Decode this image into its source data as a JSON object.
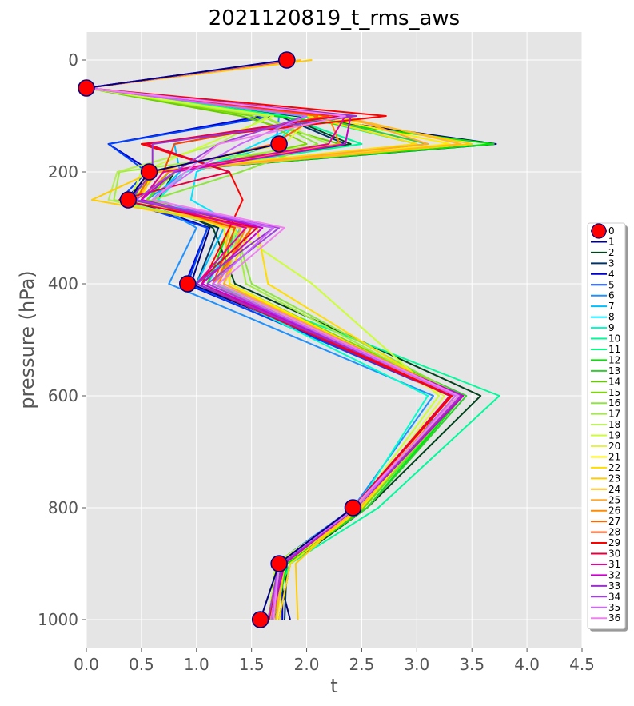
{
  "chart_data": {
    "type": "line",
    "title": "2021120819_t_rms_aws",
    "xlabel": "t",
    "ylabel": "pressure (hPa)",
    "xlim": [
      0,
      4.5
    ],
    "ylim": [
      1050,
      -50
    ],
    "xticks": [
      "0.0",
      "0.5",
      "1.0",
      "1.5",
      "2.0",
      "2.5",
      "3.0",
      "3.5",
      "4.0",
      "4.5"
    ],
    "yticks": [
      "0",
      "200",
      "400",
      "600",
      "800",
      "1000"
    ],
    "xtick_values": [
      0,
      0.5,
      1.0,
      1.5,
      2.0,
      2.5,
      3.0,
      3.5,
      4.0,
      4.5
    ],
    "ytick_values": [
      0,
      200,
      400,
      600,
      800,
      1000
    ],
    "grid": true,
    "background": "#e5e5e5",
    "legend_position": "right",
    "levels": [
      0,
      50,
      100,
      150,
      200,
      250,
      300,
      400,
      600,
      800,
      900,
      1000
    ],
    "marker_series": {
      "name": "0",
      "color": "#ff0000",
      "edge_color": "#000080",
      "x": [
        1.82,
        0.0,
        null,
        1.75,
        0.57,
        0.38,
        null,
        0.92,
        null,
        2.42,
        1.75,
        1.58
      ]
    },
    "series": [
      {
        "name": "1",
        "color": "#000080",
        "x": [
          1.85,
          0.0,
          1.9,
          3.72,
          0.62,
          0.38,
          1.12,
          0.95,
          3.4,
          2.5,
          1.72,
          1.85
        ]
      },
      {
        "name": "2",
        "color": "#00441b",
        "x": [
          1.9,
          0.0,
          1.8,
          2.4,
          0.8,
          0.65,
          1.15,
          1.35,
          3.58,
          2.55,
          1.85,
          1.75
        ]
      },
      {
        "name": "3",
        "color": "#003366",
        "x": [
          1.88,
          0.0,
          1.75,
          2.35,
          0.7,
          0.5,
          1.2,
          1.0,
          3.3,
          2.52,
          1.82,
          1.8
        ]
      },
      {
        "name": "4",
        "color": "#0000cd",
        "x": [
          1.85,
          0.0,
          1.6,
          0.2,
          0.6,
          0.35,
          1.1,
          0.9,
          3.35,
          2.45,
          1.78,
          1.78
        ]
      },
      {
        "name": "5",
        "color": "#0044ff",
        "x": [
          1.85,
          0.0,
          1.7,
          0.2,
          0.55,
          0.3,
          1.1,
          0.92,
          3.3,
          2.45,
          1.75,
          1.72
        ]
      },
      {
        "name": "6",
        "color": "#1e90ff",
        "x": [
          1.82,
          0.0,
          1.75,
          1.72,
          0.9,
          0.55,
          1.0,
          0.75,
          3.15,
          2.42,
          1.72,
          1.7
        ]
      },
      {
        "name": "7",
        "color": "#00bfff",
        "x": [
          1.85,
          0.0,
          2.2,
          0.8,
          0.85,
          0.6,
          1.25,
          1.0,
          3.35,
          2.48,
          1.8,
          1.72
        ]
      },
      {
        "name": "8",
        "color": "#00e5ff",
        "x": [
          1.85,
          0.0,
          2.1,
          1.55,
          1.0,
          0.95,
          1.4,
          1.1,
          3.4,
          2.5,
          1.75,
          1.7
        ]
      },
      {
        "name": "9",
        "color": "#00ffcc",
        "x": [
          1.85,
          0.0,
          2.0,
          1.7,
          0.9,
          0.65,
          1.45,
          1.05,
          3.1,
          2.45,
          1.75,
          1.68
        ]
      },
      {
        "name": "10",
        "color": "#00fa9a",
        "x": [
          1.85,
          0.0,
          1.8,
          2.5,
          0.75,
          0.55,
          1.5,
          1.15,
          3.75,
          2.65,
          1.85,
          1.65
        ]
      },
      {
        "name": "11",
        "color": "#00ff7f",
        "x": [
          1.85,
          0.0,
          1.95,
          3.0,
          0.7,
          0.5,
          1.35,
          1.15,
          3.4,
          2.55,
          1.8,
          1.7
        ]
      },
      {
        "name": "12",
        "color": "#00e600",
        "x": [
          1.85,
          0.0,
          1.7,
          3.7,
          0.6,
          0.45,
          1.3,
          1.1,
          3.42,
          2.55,
          1.82,
          1.72
        ]
      },
      {
        "name": "13",
        "color": "#32cd32",
        "x": [
          1.85,
          0.0,
          2.05,
          3.1,
          0.65,
          0.4,
          1.35,
          1.2,
          3.45,
          2.55,
          1.78,
          1.68
        ]
      },
      {
        "name": "14",
        "color": "#66cc00",
        "x": [
          1.85,
          0.0,
          1.4,
          2.3,
          0.7,
          0.5,
          1.4,
          1.25,
          3.38,
          2.5,
          1.75,
          1.65
        ]
      },
      {
        "name": "15",
        "color": "#7cd900",
        "x": [
          1.85,
          0.0,
          1.5,
          2.0,
          0.8,
          0.55,
          1.3,
          1.3,
          3.4,
          2.52,
          1.78,
          1.67
        ]
      },
      {
        "name": "16",
        "color": "#8ee53f",
        "x": [
          1.85,
          0.0,
          1.6,
          2.1,
          1.4,
          0.6,
          1.35,
          1.5,
          3.4,
          2.5,
          1.8,
          1.7
        ]
      },
      {
        "name": "17",
        "color": "#a2ee3e",
        "x": [
          1.85,
          0.0,
          1.6,
          2.2,
          0.3,
          0.25,
          1.35,
          1.45,
          3.35,
          2.45,
          1.75,
          1.68
        ]
      },
      {
        "name": "18",
        "color": "#b5ee55",
        "x": [
          1.85,
          0.0,
          1.65,
          1.2,
          0.28,
          0.2,
          1.35,
          1.3,
          3.3,
          2.45,
          1.72,
          1.67
        ]
      },
      {
        "name": "19",
        "color": "#ccff33",
        "x": [
          1.85,
          0.0,
          1.7,
          1.1,
          0.5,
          0.4,
          1.3,
          2.05,
          3.2,
          2.45,
          1.72,
          1.65
        ]
      },
      {
        "name": "20",
        "color": "#e6f542",
        "x": [
          1.85,
          0.0,
          2.05,
          1.8,
          0.55,
          0.45,
          1.3,
          1.3,
          3.25,
          2.47,
          1.75,
          1.7
        ]
      },
      {
        "name": "21",
        "color": "#ffee00",
        "x": [
          1.85,
          0.0,
          2.1,
          3.3,
          0.6,
          0.5,
          1.25,
          1.3,
          3.35,
          2.5,
          1.8,
          1.73
        ]
      },
      {
        "name": "22",
        "color": "#ffdd00",
        "x": [
          1.85,
          0.0,
          2.0,
          3.0,
          0.55,
          0.5,
          1.55,
          1.65,
          3.3,
          2.5,
          1.85,
          1.75
        ]
      },
      {
        "name": "23",
        "color": "#ffcc00",
        "x": [
          2.05,
          0.0,
          2.2,
          3.5,
          0.6,
          0.05,
          1.5,
          1.25,
          3.38,
          2.45,
          1.9,
          1.92
        ]
      },
      {
        "name": "24",
        "color": "#ffbb22",
        "x": [
          1.95,
          0.0,
          2.3,
          3.4,
          0.65,
          0.45,
          1.3,
          1.2,
          3.35,
          2.48,
          1.8,
          1.72
        ]
      },
      {
        "name": "25",
        "color": "#ffaa33",
        "x": [
          1.9,
          0.0,
          2.35,
          3.1,
          0.7,
          0.5,
          1.4,
          1.25,
          3.3,
          2.45,
          1.78,
          1.7
        ]
      },
      {
        "name": "26",
        "color": "#ff8c00",
        "x": [
          1.9,
          0.0,
          2.2,
          2.3,
          0.75,
          0.5,
          1.45,
          1.2,
          3.4,
          2.45,
          1.78,
          1.7
        ]
      },
      {
        "name": "27",
        "color": "#ff6600",
        "x": [
          1.88,
          0.0,
          2.1,
          1.7,
          0.6,
          0.45,
          1.5,
          1.15,
          3.35,
          2.45,
          1.78,
          1.7
        ]
      },
      {
        "name": "28",
        "color": "#ff4500",
        "x": [
          1.88,
          0.0,
          2.2,
          0.8,
          0.7,
          0.5,
          1.35,
          1.15,
          3.3,
          2.42,
          1.75,
          1.68
        ]
      },
      {
        "name": "29",
        "color": "#ff0000",
        "x": [
          1.88,
          0.0,
          2.72,
          0.5,
          1.3,
          1.42,
          1.3,
          1.05,
          3.32,
          2.42,
          1.75,
          1.66
        ]
      },
      {
        "name": "30",
        "color": "#e60040",
        "x": [
          1.85,
          0.0,
          2.3,
          0.55,
          1.3,
          0.3,
          1.55,
          1.0,
          3.3,
          2.42,
          1.75,
          1.65
        ]
      },
      {
        "name": "31",
        "color": "#e600a0",
        "x": [
          1.85,
          0.0,
          2.35,
          2.2,
          0.7,
          0.5,
          1.45,
          1.0,
          3.42,
          2.45,
          1.8,
          1.68
        ]
      },
      {
        "name": "32",
        "color": "#cc00cc",
        "x": [
          1.85,
          0.0,
          2.4,
          2.35,
          0.8,
          0.5,
          1.6,
          1.05,
          3.42,
          2.45,
          1.8,
          1.68
        ]
      },
      {
        "name": "33",
        "color": "#9932cc",
        "x": [
          1.85,
          0.0,
          2.45,
          0.6,
          0.6,
          0.4,
          1.7,
          1.0,
          3.4,
          2.45,
          1.78,
          1.68
        ]
      },
      {
        "name": "34",
        "color": "#a040e0",
        "x": [
          1.85,
          0.0,
          2.0,
          1.2,
          0.8,
          0.45,
          1.75,
          1.1,
          3.38,
          2.42,
          1.75,
          1.65
        ]
      },
      {
        "name": "35",
        "color": "#cc66ff",
        "x": [
          1.85,
          0.0,
          2.0,
          1.4,
          0.95,
          0.6,
          1.7,
          1.15,
          3.35,
          2.45,
          1.75,
          1.68
        ]
      },
      {
        "name": "36",
        "color": "#ee82ee",
        "x": [
          1.85,
          0.0,
          2.35,
          1.2,
          0.9,
          0.6,
          1.8,
          1.2,
          3.38,
          2.42,
          1.75,
          1.7
        ]
      }
    ]
  }
}
